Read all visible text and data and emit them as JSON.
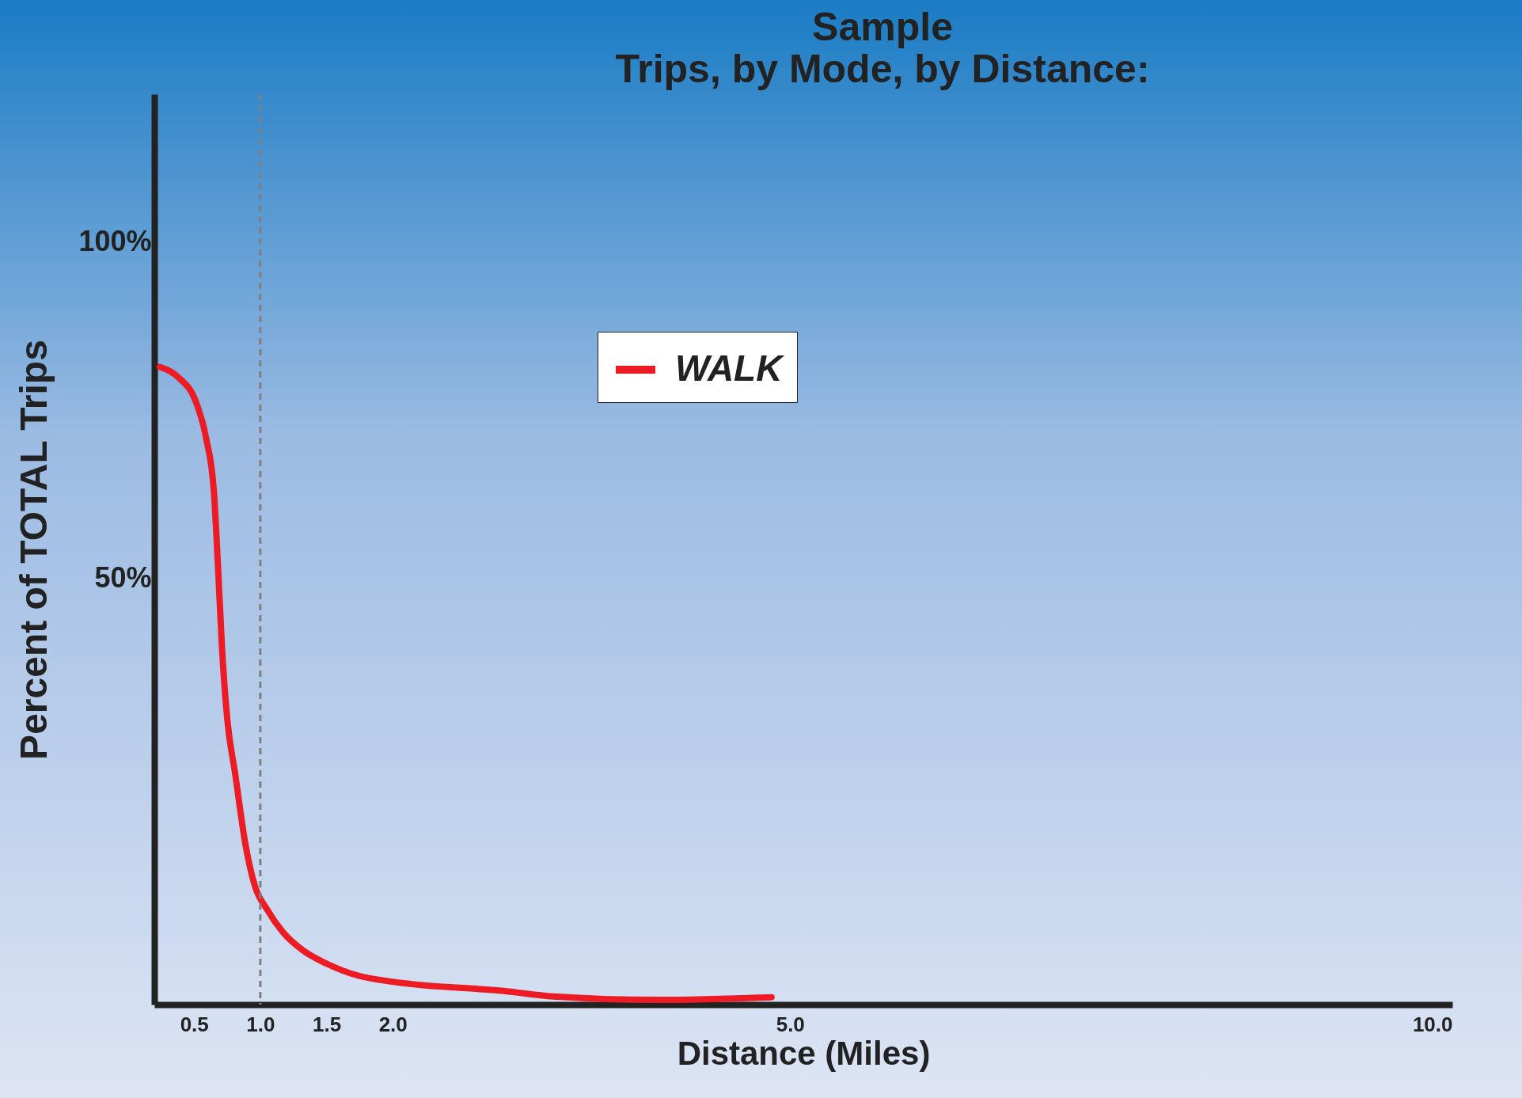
{
  "chart_data": {
    "type": "line",
    "title": "Sample",
    "subtitle": "Trips, by Mode, by Distance:",
    "xlabel": "Distance (Miles)",
    "ylabel": "Percent of TOTAL Trips",
    "x": [
      0.24,
      0.39,
      0.51,
      0.59,
      0.65,
      0.68,
      0.71,
      0.75,
      0.81,
      0.89,
      0.96,
      1.05,
      1.17,
      1.32,
      1.5,
      1.74,
      2.0,
      2.85,
      3.21,
      4.0,
      4.86
    ],
    "series": [
      {
        "name": "WALK",
        "color": "#ed1c24",
        "values": [
          81.4,
          79.7,
          76.4,
          70.9,
          62.8,
          52.0,
          39.9,
          29.1,
          20.9,
          10.1,
          4.1,
          0.7,
          -2.7,
          -5.4,
          -7.4,
          -9.2,
          -10.1,
          -11.5,
          -12.3,
          -12.8,
          -12.4
        ]
      }
    ],
    "xlim": [
      0.2,
      10
    ],
    "xticks": [
      {
        "value": 0.5,
        "label": "0.5"
      },
      {
        "value": 1,
        "label": "1.0"
      },
      {
        "value": 1.5,
        "label": "1.5"
      },
      {
        "value": 2,
        "label": "2.0"
      },
      {
        "value": 5,
        "label": "5.0"
      },
      {
        "value": 10,
        "label": "10.0"
      }
    ],
    "ylim": [
      -13.5,
      122
    ],
    "yticks": [
      {
        "value": 50,
        "label": "50%"
      },
      {
        "value": 100,
        "label": "100%"
      }
    ],
    "ref_lines": [
      {
        "axis": "x",
        "value": 1,
        "color": "#808080",
        "line_style": "dashed"
      }
    ],
    "grid": false,
    "legend": "top",
    "marker": "none",
    "line_style": "solid"
  }
}
